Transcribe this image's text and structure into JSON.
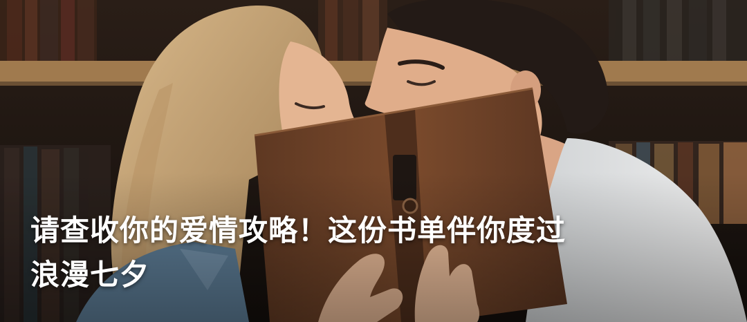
{
  "headline": "请查收你的爱情攻略！这份书单伴你度过\n浪漫七夕",
  "image": {
    "subject": "couple-kissing-behind-book-photo",
    "palette": {
      "background": "#1b1410",
      "shelf_wood": "#a07a4e",
      "book_cover": "#6b4026",
      "hair_blonde": "#c9a77a",
      "skin": "#e2b08e",
      "shirt_denim": "#5b7a93",
      "shirt_white": "#e6e6e6"
    }
  }
}
